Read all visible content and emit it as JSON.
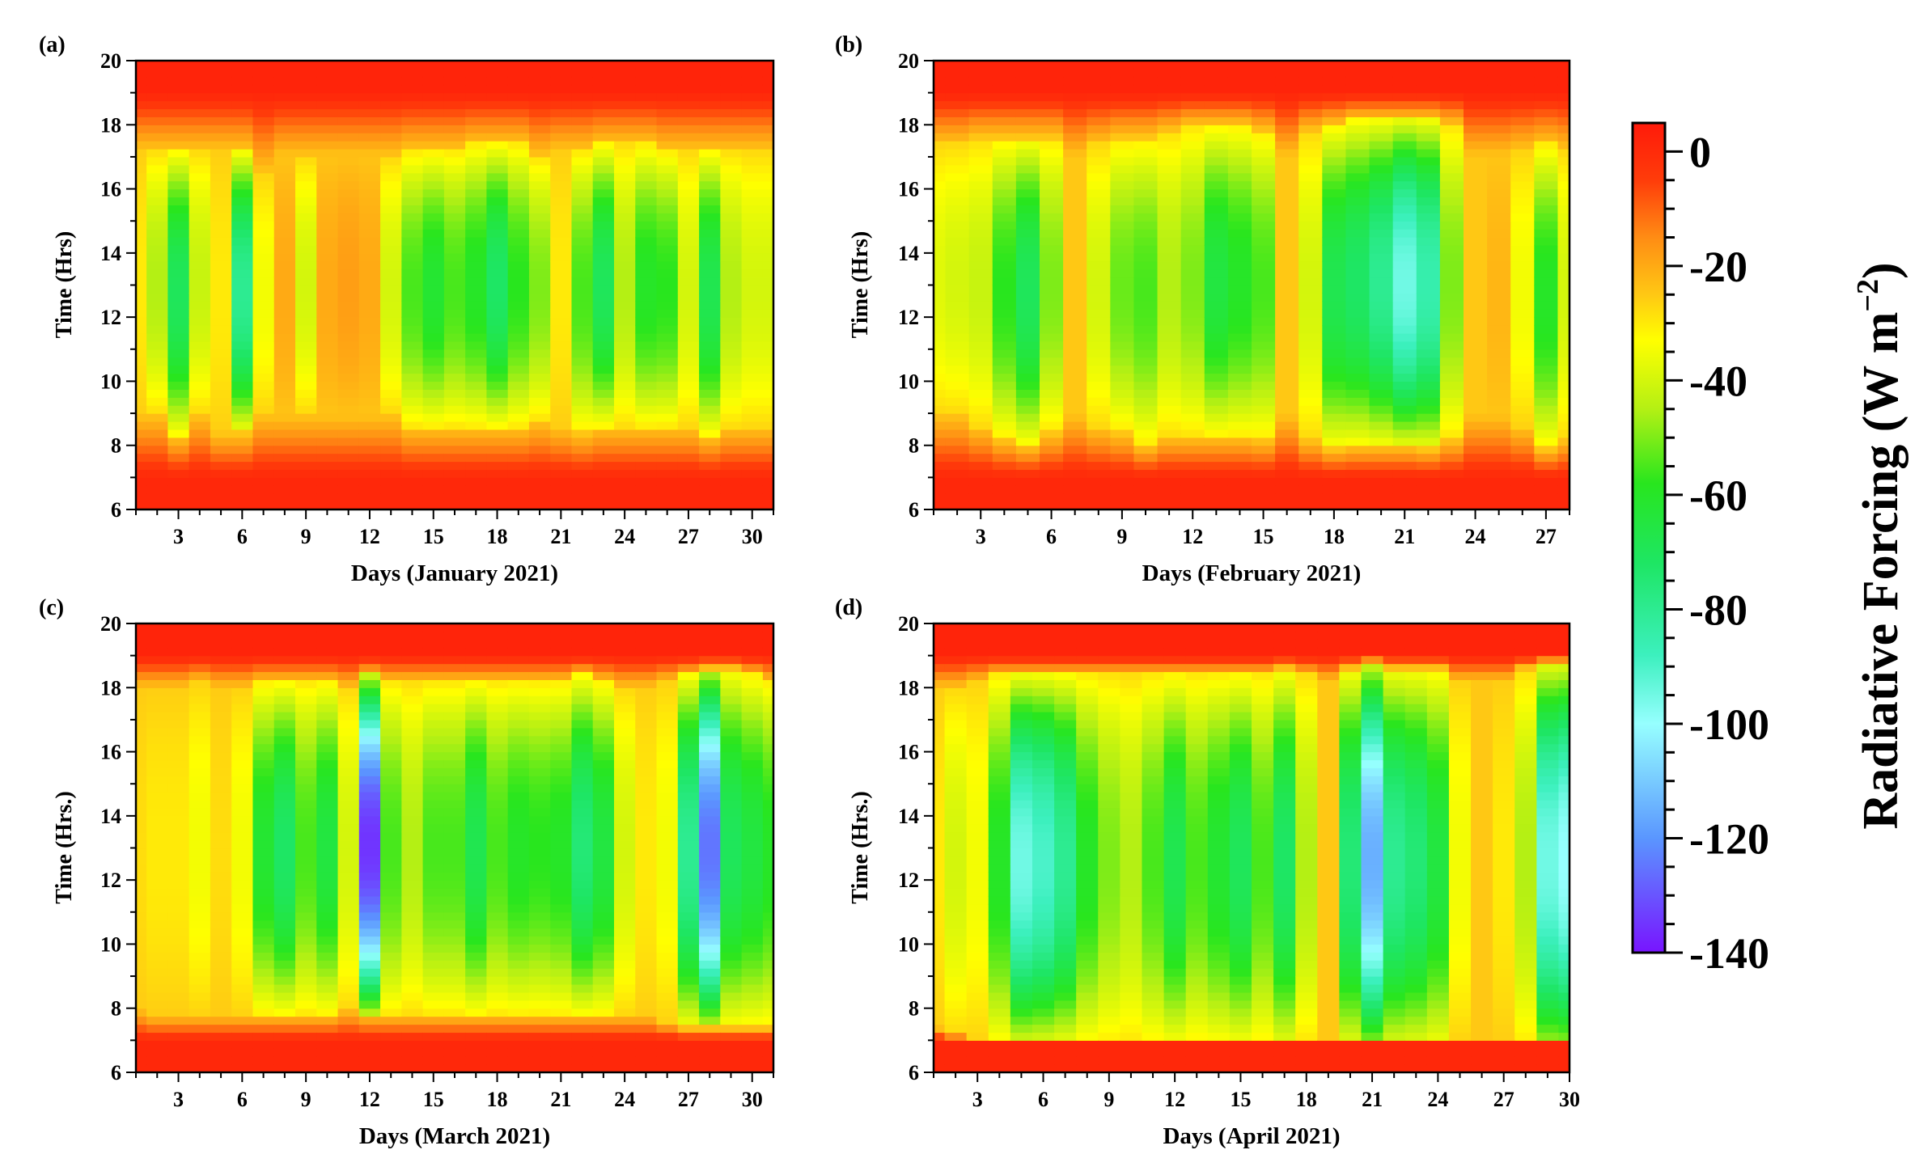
{
  "chart_data": [
    {
      "type": "heatmap",
      "panel_label": "(a)",
      "xlabel": "Days (January 2021)",
      "ylabel": "Time (Hrs)",
      "xlim": [
        1,
        31
      ],
      "ylim": [
        6,
        20
      ],
      "xticks": [
        3,
        6,
        9,
        12,
        15,
        18,
        21,
        24,
        27,
        30
      ],
      "yticks": [
        6,
        8,
        10,
        12,
        14,
        16,
        18,
        20
      ],
      "day_min_forcing": [
        -30,
        -45,
        -70,
        -42,
        -30,
        -80,
        -35,
        -20,
        -40,
        -20,
        -18,
        -20,
        -40,
        -55,
        -62,
        -55,
        -60,
        -72,
        -58,
        -50,
        -30,
        -55,
        -70,
        -45,
        -60,
        -58,
        -40,
        -68,
        -45,
        -40,
        -40
      ],
      "day_active_hours": [
        [
          9,
          17.2
        ],
        [
          9,
          17.2
        ],
        [
          8.3,
          17.2
        ],
        [
          9,
          17.2
        ],
        [
          8.4,
          17.2
        ],
        [
          8.4,
          17.2
        ],
        [
          9,
          16.5
        ],
        [
          9,
          17
        ],
        [
          9,
          17
        ],
        [
          9,
          17
        ],
        [
          9,
          17
        ],
        [
          9,
          17
        ],
        [
          9,
          17
        ],
        [
          8.6,
          17.2
        ],
        [
          8.6,
          17.2
        ],
        [
          8.6,
          17.2
        ],
        [
          8.6,
          17.4
        ],
        [
          8.6,
          17.4
        ],
        [
          8.6,
          17.4
        ],
        [
          8.8,
          17
        ],
        [
          8.6,
          17.2
        ],
        [
          8.4,
          17.2
        ],
        [
          8.6,
          17.4
        ],
        [
          8.6,
          17.4
        ],
        [
          8.6,
          17.4
        ],
        [
          8.6,
          17.2
        ],
        [
          8.6,
          17.2
        ],
        [
          8.3,
          17.2
        ],
        [
          8.6,
          17.2
        ],
        [
          8.6,
          17.2
        ],
        [
          8.6,
          17.2
        ]
      ]
    },
    {
      "type": "heatmap",
      "panel_label": "(b)",
      "xlabel": "Days (February 2021)",
      "ylabel": "Time (Hrs)",
      "xlim": [
        1,
        28
      ],
      "ylim": [
        6,
        20
      ],
      "xticks": [
        3,
        6,
        9,
        12,
        15,
        18,
        21,
        24,
        27
      ],
      "yticks": [
        6,
        8,
        10,
        12,
        14,
        16,
        18,
        20
      ],
      "day_min_forcing": [
        -38,
        -40,
        -42,
        -58,
        -70,
        -50,
        -25,
        -40,
        -52,
        -55,
        -45,
        -50,
        -65,
        -60,
        -55,
        -25,
        -40,
        -68,
        -72,
        -80,
        -95,
        -85,
        -50,
        -25,
        -22,
        -35,
        -60,
        -40
      ],
      "day_active_hours": [
        [
          9,
          17.4
        ],
        [
          9,
          17.4
        ],
        [
          8.6,
          17.6
        ],
        [
          8.2,
          17.6
        ],
        [
          8,
          17.6
        ],
        [
          8.4,
          17.6
        ],
        [
          9,
          17
        ],
        [
          8.6,
          17.4
        ],
        [
          8.4,
          17.6
        ],
        [
          8,
          17.6
        ],
        [
          8.3,
          17.8
        ],
        [
          8.3,
          18
        ],
        [
          8.3,
          18
        ],
        [
          8.3,
          18
        ],
        [
          8.2,
          17.8
        ],
        [
          9,
          17
        ],
        [
          8.2,
          17.8
        ],
        [
          7.9,
          18
        ],
        [
          8,
          18.2
        ],
        [
          8,
          18.2
        ],
        [
          8,
          18.2
        ],
        [
          7.9,
          18.2
        ],
        [
          8.2,
          18
        ],
        [
          9,
          17
        ],
        [
          9,
          17
        ],
        [
          8.6,
          17.2
        ],
        [
          7.9,
          17.4
        ],
        [
          8.2,
          17.2
        ]
      ]
    },
    {
      "type": "heatmap",
      "panel_label": "(c)",
      "xlabel": "Days (March 2021)",
      "ylabel": "Time (Hrs.)",
      "xlim": [
        1,
        31
      ],
      "ylim": [
        6,
        20
      ],
      "xticks": [
        3,
        6,
        9,
        12,
        15,
        18,
        21,
        24,
        27,
        30
      ],
      "yticks": [
        6,
        8,
        10,
        12,
        14,
        16,
        18,
        20
      ],
      "day_min_forcing": [
        -28,
        -30,
        -30,
        -35,
        -28,
        -35,
        -62,
        -72,
        -55,
        -65,
        -40,
        -135,
        -55,
        -45,
        -55,
        -55,
        -68,
        -55,
        -60,
        -58,
        -60,
        -75,
        -65,
        -40,
        -30,
        -35,
        -80,
        -125,
        -70,
        -65,
        -60
      ],
      "day_active_hours": [
        [
          8,
          18
        ],
        [
          7.8,
          18
        ],
        [
          7.8,
          18
        ],
        [
          7.8,
          18.2
        ],
        [
          7.8,
          18
        ],
        [
          7.8,
          18
        ],
        [
          7.8,
          18.2
        ],
        [
          7.8,
          18.2
        ],
        [
          7.8,
          18.2
        ],
        [
          7.8,
          18.2
        ],
        [
          8,
          18
        ],
        [
          7.8,
          18.4
        ],
        [
          7.8,
          18.2
        ],
        [
          7.8,
          18.2
        ],
        [
          7.8,
          18.2
        ],
        [
          7.8,
          18.2
        ],
        [
          7.8,
          18.2
        ],
        [
          7.8,
          18.2
        ],
        [
          7.8,
          18.2
        ],
        [
          7.8,
          18.2
        ],
        [
          7.8,
          18.2
        ],
        [
          7.8,
          18.4
        ],
        [
          7.8,
          18.2
        ],
        [
          7.8,
          18
        ],
        [
          7.8,
          18
        ],
        [
          7.6,
          18.2
        ],
        [
          7.4,
          18.4
        ],
        [
          7.4,
          18.6
        ],
        [
          7.4,
          18.6
        ],
        [
          7.4,
          18.4
        ],
        [
          7.4,
          18.2
        ]
      ]
    },
    {
      "type": "heatmap",
      "panel_label": "(d)",
      "xlabel": "Days (April 2021)",
      "ylabel": "Time (Hrs.)",
      "xlim": [
        1,
        30
      ],
      "ylim": [
        6,
        20
      ],
      "xticks": [
        3,
        6,
        9,
        12,
        15,
        18,
        21,
        24,
        27,
        30
      ],
      "yticks": [
        6,
        8,
        10,
        12,
        14,
        16,
        18,
        20
      ],
      "day_min_forcing": [
        -30,
        -40,
        -35,
        -60,
        -95,
        -90,
        -80,
        -60,
        -50,
        -45,
        -55,
        -68,
        -55,
        -62,
        -70,
        -55,
        -72,
        -45,
        -25,
        -75,
        -115,
        -80,
        -75,
        -65,
        -35,
        -25,
        -30,
        -45,
        -95,
        -100
      ],
      "day_active_hours": [
        [
          7.4,
          18
        ],
        [
          7.2,
          18
        ],
        [
          7,
          18.2
        ],
        [
          6.8,
          18.4
        ],
        [
          6.8,
          18.4
        ],
        [
          6.8,
          18.4
        ],
        [
          6.8,
          18.4
        ],
        [
          6.8,
          18.4
        ],
        [
          6.8,
          18.4
        ],
        [
          6.8,
          18.4
        ],
        [
          6.8,
          18.4
        ],
        [
          6.8,
          18.4
        ],
        [
          6.8,
          18.4
        ],
        [
          6.8,
          18.4
        ],
        [
          6.8,
          18.4
        ],
        [
          6.8,
          18.4
        ],
        [
          6.6,
          18.6
        ],
        [
          6.8,
          18.4
        ],
        [
          7,
          18.2
        ],
        [
          6.6,
          18.6
        ],
        [
          6.6,
          18.8
        ],
        [
          6.6,
          18.6
        ],
        [
          6.6,
          18.6
        ],
        [
          6.6,
          18.6
        ],
        [
          7,
          18.2
        ],
        [
          7,
          18.2
        ],
        [
          7,
          18.2
        ],
        [
          6.6,
          18.6
        ],
        [
          6.4,
          18.8
        ],
        [
          6.4,
          18.8
        ]
      ]
    }
  ],
  "colorbar": {
    "label": "Radiative Forcing (W m",
    "unit_superscript": "−2",
    "unit_close": ")",
    "range": [
      -140,
      5
    ],
    "ticks": [
      0,
      -20,
      -40,
      -60,
      -80,
      -100,
      -120,
      -140
    ],
    "tick_labels": [
      "0",
      "-20",
      "-40",
      "-60",
      "-80",
      "-100",
      "-120",
      "-140"
    ],
    "minor_step": 5,
    "colors": [
      {
        "value": 5,
        "color": "#ff1a0a"
      },
      {
        "value": -5,
        "color": "#ff3c0a"
      },
      {
        "value": -15,
        "color": "#ff8c14"
      },
      {
        "value": -25,
        "color": "#ffc814"
      },
      {
        "value": -33,
        "color": "#ffff00"
      },
      {
        "value": -45,
        "color": "#b4f014"
      },
      {
        "value": -58,
        "color": "#28e61e"
      },
      {
        "value": -72,
        "color": "#1ee664"
      },
      {
        "value": -88,
        "color": "#3cf0be"
      },
      {
        "value": -100,
        "color": "#96ffff"
      },
      {
        "value": -120,
        "color": "#5a96ff"
      },
      {
        "value": -140,
        "color": "#7814ff"
      }
    ]
  }
}
